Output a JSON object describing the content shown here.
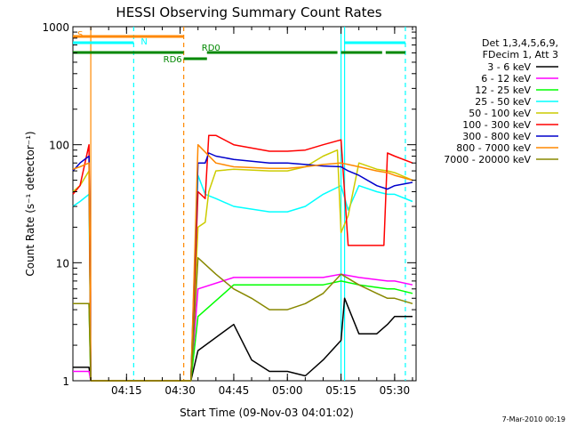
{
  "chart_data": {
    "type": "line",
    "title": "HESSI Observing Summary Count Rates",
    "xlabel": "Start Time (09-Nov-03 04:01:02)",
    "ylabel": "Count Rate (s⁻¹ detector⁻¹)",
    "x_range_minutes": [
      0,
      96
    ],
    "x_ticks": [
      {
        "label": "04:15",
        "minute": 15
      },
      {
        "label": "04:30",
        "minute": 30
      },
      {
        "label": "04:45",
        "minute": 45
      },
      {
        "label": "05:00",
        "minute": 60
      },
      {
        "label": "05:15",
        "minute": 75
      },
      {
        "label": "05:30",
        "minute": 90
      }
    ],
    "y_scale": "log",
    "ylim": [
      1,
      1000
    ],
    "y_ticks": [
      {
        "label": "1",
        "value": 1
      },
      {
        "label": "10",
        "value": 10
      },
      {
        "label": "100",
        "value": 100
      },
      {
        "label": "1000",
        "value": 1000
      }
    ],
    "legend_header": [
      "Det 1,3,4,5,6,9,",
      "FDecim 1, Att 3"
    ],
    "legend_placement": "right",
    "series": [
      {
        "name": "3 - 6 keV",
        "color": "#000000",
        "x": [
          0,
          4.5,
          5,
          33,
          35,
          45,
          50,
          55,
          60,
          65,
          70,
          75,
          76,
          80,
          85,
          88,
          90,
          95
        ],
        "y": [
          1.3,
          1.3,
          1,
          1,
          1.8,
          3,
          1.5,
          1.2,
          1.2,
          1.1,
          1.5,
          2.2,
          5,
          2.5,
          2.5,
          3,
          3.5,
          3.5
        ]
      },
      {
        "name": "6 - 12 keV",
        "color": "#ff00ff",
        "x": [
          0,
          4.5,
          5,
          33,
          35,
          45,
          55,
          65,
          70,
          75,
          80,
          88,
          90,
          95
        ],
        "y": [
          1.2,
          1.2,
          1,
          1,
          6,
          7.5,
          7.5,
          7.5,
          7.5,
          8,
          7.5,
          7,
          7,
          6.5
        ]
      },
      {
        "name": "12 - 25 keV",
        "color": "#00ff00",
        "x": [
          0,
          4.5,
          5,
          33,
          35,
          45,
          55,
          65,
          70,
          75,
          80,
          88,
          90,
          95
        ],
        "y": [
          4.5,
          4.5,
          1,
          1,
          3.5,
          6.5,
          6.5,
          6.5,
          6.5,
          7,
          6.5,
          6,
          6,
          5.5
        ]
      },
      {
        "name": "25 - 50 keV",
        "color": "#00ffff",
        "x": [
          0,
          2,
          4.5,
          5,
          33,
          35,
          37,
          40,
          45,
          55,
          60,
          65,
          70,
          75,
          77,
          80,
          85,
          88,
          90,
          95
        ],
        "y": [
          30,
          33,
          38,
          1,
          1,
          55,
          38,
          35,
          30,
          27,
          27,
          30,
          38,
          45,
          28,
          45,
          40,
          38,
          38,
          33
        ]
      },
      {
        "name": "50 - 100 keV",
        "color": "#cccc00",
        "x": [
          0,
          2,
          4.5,
          5,
          33,
          35,
          37,
          38,
          40,
          45,
          55,
          60,
          65,
          70,
          74,
          75,
          77,
          80,
          85,
          88,
          90,
          95
        ],
        "y": [
          40,
          45,
          60,
          1,
          1,
          20,
          22,
          40,
          60,
          62,
          60,
          60,
          65,
          80,
          90,
          18,
          25,
          70,
          62,
          60,
          58,
          50
        ]
      },
      {
        "name": "100 - 300 keV",
        "color": "#ff0000",
        "x": [
          0,
          2,
          4.5,
          5,
          33,
          35,
          37,
          38,
          40,
          45,
          55,
          60,
          65,
          70,
          75,
          77,
          80,
          85,
          87,
          88,
          90,
          95
        ],
        "y": [
          38,
          45,
          100,
          1,
          1,
          40,
          35,
          120,
          120,
          100,
          88,
          88,
          90,
          100,
          110,
          14,
          14,
          14,
          14,
          85,
          80,
          70
        ]
      },
      {
        "name": "300 - 800 keV",
        "color": "#0000cc",
        "x": [
          0,
          2,
          4.5,
          5,
          33,
          35,
          37,
          38,
          40,
          45,
          55,
          60,
          65,
          70,
          75,
          77,
          80,
          85,
          88,
          90,
          95
        ],
        "y": [
          60,
          70,
          80,
          1,
          1,
          70,
          70,
          85,
          80,
          75,
          70,
          70,
          68,
          66,
          65,
          60,
          55,
          45,
          42,
          45,
          48
        ]
      },
      {
        "name": "800 - 7000 keV",
        "color": "#ff8800",
        "x": [
          0,
          2,
          4.5,
          5,
          33,
          35,
          40,
          45,
          55,
          60,
          65,
          70,
          75,
          77,
          80,
          85,
          88,
          90,
          95
        ],
        "y": [
          62,
          65,
          70,
          1,
          1,
          100,
          70,
          65,
          63,
          63,
          65,
          68,
          70,
          68,
          65,
          60,
          58,
          55,
          50
        ]
      },
      {
        "name": "7000 - 20000 keV",
        "color": "#888800",
        "x": [
          0,
          4.5,
          5,
          33,
          35,
          40,
          45,
          50,
          55,
          60,
          65,
          70,
          75,
          80,
          85,
          88,
          90,
          95
        ],
        "y": [
          4.5,
          4.5,
          1,
          1,
          11,
          8,
          6,
          5,
          4,
          4,
          4.5,
          5.5,
          8,
          6.5,
          5.5,
          5,
          5,
          4.5
        ]
      }
    ],
    "flag_bars": [
      {
        "label": "S",
        "color": "#ff8800",
        "segments": [
          [
            0,
            31
          ]
        ]
      },
      {
        "label": "N",
        "color": "#00ffff",
        "segments": [
          [
            0,
            17
          ],
          [
            76,
            93
          ]
        ]
      },
      {
        "label": "RD0",
        "color": "#008800",
        "segments": [
          [
            0,
            31
          ],
          [
            37.5,
            74
          ],
          [
            75,
            86.5
          ],
          [
            87.5,
            93
          ]
        ]
      },
      {
        "label": "RD6",
        "color": "#008800",
        "segments": [
          [
            31,
            37.5
          ]
        ]
      }
    ],
    "vertical_markers": [
      {
        "minute": 5,
        "color": "#ff8800",
        "style": "solid"
      },
      {
        "minute": 17,
        "color": "#00ffff",
        "style": "dashed"
      },
      {
        "minute": 31,
        "color": "#ff8800",
        "style": "dashed"
      },
      {
        "minute": 75,
        "color": "#00ffff",
        "style": "solid"
      },
      {
        "minute": 76,
        "color": "#00ffff",
        "style": "solid"
      },
      {
        "minute": 93,
        "color": "#00ffff",
        "style": "dashed"
      }
    ]
  },
  "footer": {
    "date_stamp": "7-Mar-2010 00:19"
  }
}
